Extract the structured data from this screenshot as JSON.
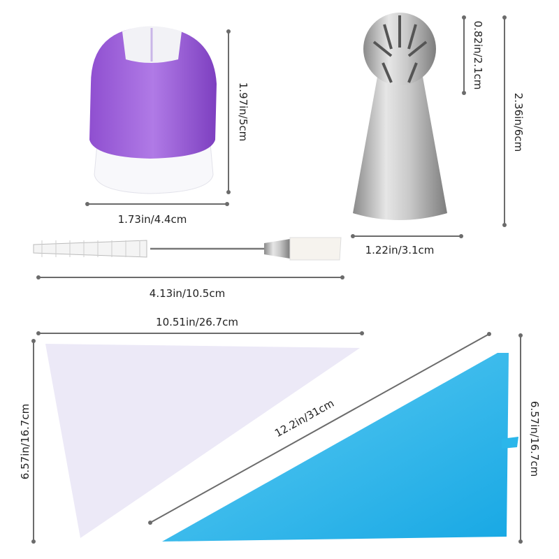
{
  "items": {
    "coupler": {
      "height_label": "1.97in/5cm",
      "width_label": "1.73in/4.4cm",
      "colors": {
        "body": "#9b5fd8",
        "base": "#ffffff"
      }
    },
    "ball_nozzle": {
      "ball_height_label": "0.82in/2.1cm",
      "height_label": "2.36in/6cm",
      "width_label": "1.22in/3.1cm",
      "color": "#b8b8b8"
    },
    "cleaning_brush": {
      "length_label": "4.13in/10.5cm"
    },
    "disposable_bag": {
      "width_label": "10.51in/26.7cm",
      "height_label": "6.57in/16.7cm",
      "color": "#ece9f7"
    },
    "silicone_bag": {
      "length_label": "12.2in/31cm",
      "height_label": "6.57in/16.7cm",
      "color": "#2bb6ea"
    }
  }
}
